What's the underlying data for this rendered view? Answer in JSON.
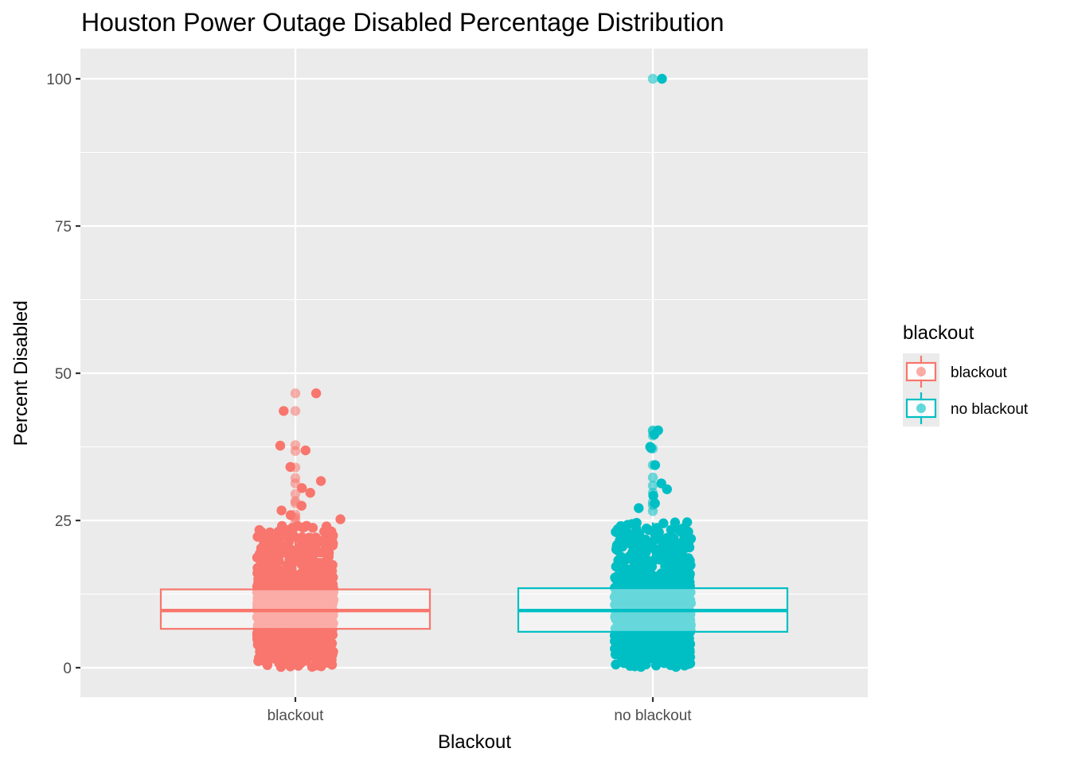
{
  "chart_data": {
    "type": "boxplot",
    "title": "Houston Power Outage Disabled Percentage Distribution",
    "xlabel": "Blackout",
    "ylabel": "Percent Disabled",
    "categories": [
      "blackout",
      "no blackout"
    ],
    "ylim": [
      -5,
      105
    ],
    "yticks": [
      0,
      25,
      50,
      75,
      100
    ],
    "grid": true,
    "legend": {
      "title": "blackout",
      "position": "right",
      "entries": [
        "blackout",
        "no blackout"
      ]
    },
    "colors": {
      "blackout": "#F8766D",
      "no blackout": "#00BFC4",
      "panel": "#EBEBEB",
      "grid": "#FFFFFF"
    },
    "series": [
      {
        "name": "blackout",
        "box": {
          "q1": 6.6,
          "median": 9.7,
          "q3": 13.3,
          "whisker_low": 0.0,
          "whisker_high": 24.1
        },
        "outliers": [
          46.6,
          46.6,
          43.6,
          43.6,
          37.8,
          37.7,
          36.8,
          36.9,
          34.0,
          34.1,
          32.2,
          31.7,
          31.3,
          30.5,
          29.5,
          29.7,
          28.3,
          27.5,
          27.9,
          26.7,
          26.0,
          25.9,
          25.5,
          25.2,
          25.0
        ]
      },
      {
        "name": "no blackout",
        "box": {
          "q1": 6.1,
          "median": 9.7,
          "q3": 13.5,
          "whisker_low": 0.0,
          "whisker_high": 24.7
        },
        "outliers": [
          100,
          100,
          40.3,
          40.3,
          40.2,
          39.6,
          39.4,
          37.5,
          37.2,
          37.3,
          34.4,
          34.4,
          32.3,
          31.3,
          30.9,
          30.3,
          29.7,
          29.2,
          28.1,
          27.9,
          27.6,
          27.1,
          26.6,
          24.7
        ]
      }
    ]
  }
}
